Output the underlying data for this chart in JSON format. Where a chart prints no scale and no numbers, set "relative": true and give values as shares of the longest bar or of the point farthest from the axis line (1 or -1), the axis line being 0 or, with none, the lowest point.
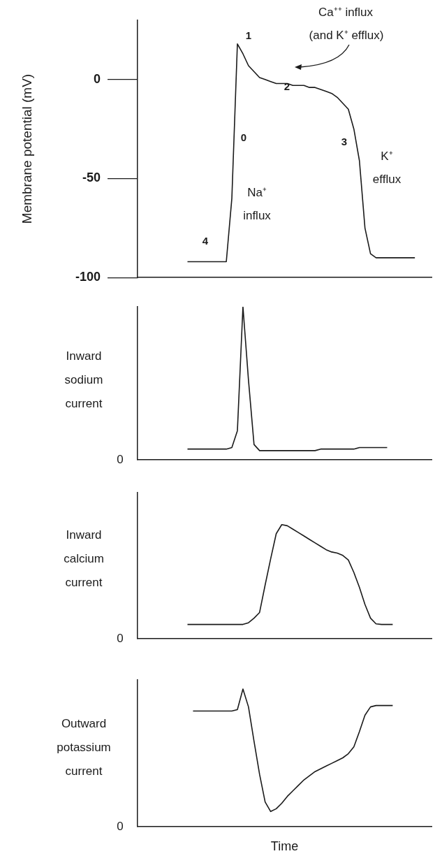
{
  "chart_data": [
    {
      "type": "line",
      "ylabel": "Membrane potential (mV)",
      "ylim": [
        -100,
        30
      ],
      "yticks": [
        -100,
        -50,
        0
      ],
      "categories": [
        null,
        null,
        null,
        null,
        null,
        null,
        null,
        null,
        null,
        null,
        null,
        null,
        null,
        null,
        null,
        null,
        null,
        null,
        null,
        null,
        null,
        null,
        null,
        null,
        null,
        null,
        null,
        null,
        null,
        null,
        null,
        null,
        null,
        null,
        null,
        null,
        null,
        null,
        null,
        null,
        null,
        null,
        null,
        null,
        null,
        null,
        null,
        null,
        null,
        null,
        null,
        null,
        null,
        null
      ],
      "series": [
        {
          "color": "#1a1a1a",
          "values": [
            null,
            null,
            null,
            null,
            null,
            null,
            null,
            null,
            null,
            -92,
            -92,
            -92,
            -92,
            -92,
            -92,
            -92,
            -92,
            -60,
            18,
            13,
            7,
            4,
            1,
            0,
            -1,
            -2,
            -2,
            -2,
            -3,
            -3,
            -3,
            -4,
            -4,
            -5,
            -6,
            -7,
            -9,
            -12,
            -15,
            -25,
            -41,
            -75,
            -88,
            -90,
            -90,
            -90,
            -90,
            -90,
            -90,
            -90,
            -90,
            null,
            null,
            null
          ]
        }
      ],
      "annotations": [
        "1",
        "2",
        "0",
        "3",
        "4",
        "Ca⁺⁺ influx",
        "(and K⁺ efflux)",
        "Na⁺ influx",
        "K⁺ efflux"
      ]
    },
    {
      "type": "line",
      "relative": true,
      "ylabel": "Inward sodium current",
      "categories": [
        null,
        null,
        null,
        null,
        null,
        null,
        null,
        null,
        null,
        null,
        null,
        null,
        null,
        null,
        null,
        null,
        null,
        null,
        null,
        null,
        null,
        null,
        null,
        null,
        null,
        null,
        null,
        null,
        null,
        null,
        null,
        null,
        null,
        null,
        null,
        null,
        null,
        null,
        null,
        null,
        null,
        null,
        null,
        null,
        null,
        null,
        null,
        null,
        null,
        null,
        null,
        null,
        null,
        null
      ],
      "series": [
        {
          "color": "#1a1a1a",
          "values": [
            null,
            null,
            null,
            null,
            null,
            null,
            null,
            null,
            null,
            0.07,
            0.07,
            0.07,
            0.07,
            0.07,
            0.07,
            0.07,
            0.07,
            0.08,
            0.19,
            1,
            0.52,
            0.1,
            0.06,
            0.06,
            0.06,
            0.06,
            0.06,
            0.06,
            0.06,
            0.06,
            0.06,
            0.06,
            0.06,
            0.07,
            0.07,
            0.07,
            0.07,
            0.07,
            0.07,
            0.07,
            0.08,
            0.08,
            0.08,
            0.08,
            0.08,
            0.08,
            null,
            null,
            null,
            null,
            null,
            null,
            null,
            null
          ]
        }
      ],
      "annotations": [
        "0"
      ]
    },
    {
      "type": "line",
      "relative": true,
      "ylabel": "Inward calcium current",
      "categories": [
        null,
        null,
        null,
        null,
        null,
        null,
        null,
        null,
        null,
        null,
        null,
        null,
        null,
        null,
        null,
        null,
        null,
        null,
        null,
        null,
        null,
        null,
        null,
        null,
        null,
        null,
        null,
        null,
        null,
        null,
        null,
        null,
        null,
        null,
        null,
        null,
        null,
        null,
        null,
        null,
        null,
        null,
        null,
        null,
        null,
        null,
        null,
        null,
        null,
        null,
        null,
        null,
        null,
        null
      ],
      "series": [
        {
          "color": "#1a1a1a",
          "values": [
            null,
            null,
            null,
            null,
            null,
            null,
            null,
            null,
            null,
            0.125,
            0.125,
            0.125,
            0.125,
            0.125,
            0.125,
            0.125,
            0.125,
            0.125,
            0.125,
            0.125,
            0.14,
            0.18,
            0.23,
            0.47,
            0.7,
            0.92,
            1,
            0.99,
            0.96,
            0.93,
            0.9,
            0.87,
            0.84,
            0.81,
            0.78,
            0.76,
            0.75,
            0.73,
            0.69,
            0.58,
            0.45,
            0.3,
            0.18,
            0.13,
            0.125,
            0.125,
            0.125,
            null,
            null,
            null,
            null,
            null,
            null,
            null
          ]
        }
      ],
      "annotations": [
        "0"
      ]
    },
    {
      "type": "line",
      "relative": true,
      "ylabel": "Outward potassium current",
      "xlabel": "Time",
      "categories": [
        null,
        null,
        null,
        null,
        null,
        null,
        null,
        null,
        null,
        null,
        null,
        null,
        null,
        null,
        null,
        null,
        null,
        null,
        null,
        null,
        null,
        null,
        null,
        null,
        null,
        null,
        null,
        null,
        null,
        null,
        null,
        null,
        null,
        null,
        null,
        null,
        null,
        null,
        null,
        null,
        null,
        null,
        null,
        null,
        null,
        null,
        null,
        null,
        null,
        null,
        null,
        null,
        null,
        null
      ],
      "series": [
        {
          "color": "#1a1a1a",
          "values": [
            null,
            null,
            null,
            null,
            null,
            null,
            null,
            null,
            null,
            null,
            0.84,
            0.84,
            0.84,
            0.84,
            0.84,
            0.84,
            0.84,
            0.84,
            0.85,
            1,
            0.87,
            0.62,
            0.38,
            0.18,
            0.11,
            0.13,
            0.17,
            0.22,
            0.26,
            0.3,
            0.34,
            0.37,
            0.4,
            0.42,
            0.44,
            0.46,
            0.48,
            0.5,
            0.53,
            0.58,
            0.69,
            0.81,
            0.87,
            0.88,
            0.88,
            0.88,
            0.88,
            null,
            null,
            null,
            null,
            null,
            null,
            null
          ]
        }
      ],
      "annotations": [
        "0"
      ]
    }
  ]
}
